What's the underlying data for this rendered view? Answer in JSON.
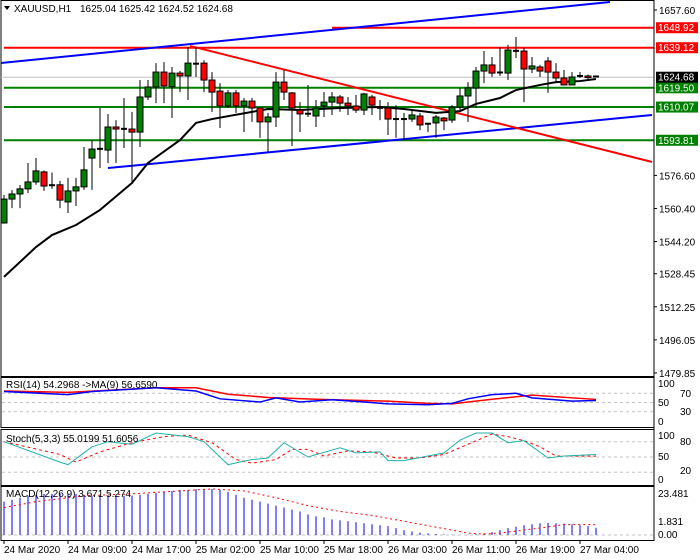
{
  "header": {
    "symbol": "XAUUSD,H1",
    "ohlc": "1625.04 1625.42 1624.52 1624.68",
    "dropdown_icon": "triangle-down-icon"
  },
  "colors": {
    "bull": "#008000",
    "bear": "#ff0000",
    "support": "#008000",
    "resistance": "#ff0000",
    "channel": "#0000ff",
    "ma": "#000000",
    "rsi": "#0000ff",
    "rsi_ma": "#ff0000",
    "stoch_main": "#20b2aa",
    "stoch_signal": "#ff0000",
    "macd_hist": "#0000ff",
    "macd_signal": "#ff0000",
    "level": "#c0c0c0"
  },
  "chart_data": [
    {
      "type": "candlestick",
      "title": "XAUUSD,H1",
      "x_tick_labels": [
        "24 Mar 2020",
        "24 Mar 09:00",
        "24 Mar 17:00",
        "25 Mar 02:00",
        "25 Mar 10:00",
        "25 Mar 18:00",
        "26 Mar 03:00",
        "26 Mar 11:00",
        "26 Mar 19:00",
        "27 Mar 04:00"
      ],
      "y_tick_labels": [
        "1657.60",
        "1576.60",
        "1560.40",
        "1544.20",
        "1528.45",
        "1512.25",
        "1496.05",
        "1479.85"
      ],
      "ylim": [
        1479.85,
        1657.6
      ],
      "candles_ohlc": [
        [
          1553.3,
          1567.0,
          1553.0,
          1565.0
        ],
        [
          1565.0,
          1569.4,
          1560.6,
          1567.5
        ],
        [
          1567.5,
          1571.9,
          1560.6,
          1570.0
        ],
        [
          1570.0,
          1582.7,
          1568.0,
          1573.4
        ],
        [
          1573.4,
          1585.1,
          1572.0,
          1578.8
        ],
        [
          1578.3,
          1579.0,
          1569.0,
          1571.4
        ],
        [
          1571.4,
          1578.0,
          1570.0,
          1571.8
        ],
        [
          1572.0,
          1573.9,
          1560.6,
          1564.5
        ],
        [
          1563.6,
          1575.4,
          1558.2,
          1569.0
        ],
        [
          1569.0,
          1575.4,
          1561.6,
          1571.0
        ],
        [
          1571.0,
          1590.5,
          1569.5,
          1579.3
        ],
        [
          1585.1,
          1594.0,
          1569.5,
          1589.5
        ],
        [
          1589.5,
          1609.6,
          1580.2,
          1589.6
        ],
        [
          1589.0,
          1606.7,
          1582.7,
          1600.3
        ],
        [
          1600.3,
          1603.7,
          1582.7,
          1599.3
        ],
        [
          1599.3,
          1614.5,
          1590.0,
          1599.4
        ],
        [
          1599.3,
          1607.7,
          1573.4,
          1597.8
        ],
        [
          1597.8,
          1623.3,
          1590.5,
          1615.0
        ],
        [
          1615.0,
          1623.3,
          1613.5,
          1619.9
        ],
        [
          1619.9,
          1631.6,
          1612.0,
          1627.2
        ],
        [
          1627.2,
          1632.1,
          1612.0,
          1620.4
        ],
        [
          1620.0,
          1629.7,
          1604.7,
          1626.7
        ],
        [
          1626.7,
          1627.7,
          1617.4,
          1625.3
        ],
        [
          1625.3,
          1639.5,
          1613.5,
          1631.6
        ],
        [
          1631.1,
          1639.5,
          1624.8,
          1631.3
        ],
        [
          1631.6,
          1633.0,
          1617.4,
          1623.3
        ],
        [
          1623.3,
          1627.2,
          1607.7,
          1617.4
        ],
        [
          1617.9,
          1621.8,
          1599.8,
          1610.6
        ],
        [
          1610.6,
          1618.4,
          1609.6,
          1617.0
        ],
        [
          1617.0,
          1618.4,
          1607.2,
          1610.6
        ],
        [
          1610.6,
          1614.5,
          1597.8,
          1613.0
        ],
        [
          1613.0,
          1614.5,
          1602.8,
          1609.6
        ],
        [
          1609.6,
          1609.6,
          1595.0,
          1602.8
        ],
        [
          1602.8,
          1607.2,
          1588.0,
          1605.2
        ],
        [
          1605.2,
          1627.2,
          1600.3,
          1622.3
        ],
        [
          1622.3,
          1628.2,
          1613.5,
          1617.4
        ],
        [
          1617.0,
          1617.4,
          1591.0,
          1609.6
        ],
        [
          1608.6,
          1612.5,
          1597.8,
          1606.7
        ],
        [
          1606.7,
          1620.9,
          1605.2,
          1606.8
        ],
        [
          1605.7,
          1613.5,
          1600.3,
          1609.6
        ],
        [
          1610.6,
          1617.4,
          1605.2,
          1612.5
        ],
        [
          1612.5,
          1617.4,
          1606.2,
          1615.0
        ],
        [
          1615.0,
          1616.0,
          1607.7,
          1612.0
        ],
        [
          1612.0,
          1615.0,
          1606.2,
          1610.6
        ],
        [
          1610.6,
          1616.0,
          1607.2,
          1608.6
        ],
        [
          1608.6,
          1617.0,
          1606.2,
          1616.5
        ],
        [
          1615.0,
          1616.0,
          1606.2,
          1611.0
        ],
        [
          1609.6,
          1613.5,
          1603.7,
          1609.7
        ],
        [
          1609.6,
          1612.5,
          1596.4,
          1604.2
        ],
        [
          1604.2,
          1611.0,
          1595.0,
          1604.0
        ],
        [
          1604.0,
          1607.2,
          1594.0,
          1604.2
        ],
        [
          1604.2,
          1608.6,
          1602.8,
          1606.2
        ],
        [
          1605.7,
          1607.2,
          1598.8,
          1601.3
        ],
        [
          1601.8,
          1602.3,
          1597.8,
          1601.9
        ],
        [
          1602.3,
          1606.2,
          1595.0,
          1605.2
        ],
        [
          1604.7,
          1605.2,
          1598.8,
          1603.3
        ],
        [
          1603.7,
          1611.0,
          1602.3,
          1610.0
        ],
        [
          1610.0,
          1619.4,
          1608.6,
          1615.5
        ],
        [
          1615.5,
          1622.3,
          1602.8,
          1619.4
        ],
        [
          1619.4,
          1629.7,
          1609.6,
          1627.7
        ],
        [
          1627.7,
          1637.5,
          1621.8,
          1630.7
        ],
        [
          1630.7,
          1634.6,
          1624.8,
          1626.7
        ],
        [
          1627.0,
          1639.5,
          1625.3,
          1626.7
        ],
        [
          1626.7,
          1640.5,
          1623.3,
          1638.0
        ],
        [
          1637.5,
          1644.4,
          1634.1,
          1637.6
        ],
        [
          1637.5,
          1639.0,
          1612.5,
          1628.7
        ],
        [
          1628.7,
          1634.6,
          1626.7,
          1630.2
        ],
        [
          1629.7,
          1630.7,
          1624.8,
          1627.7
        ],
        [
          1632.6,
          1634.6,
          1617.0,
          1627.2
        ],
        [
          1627.2,
          1631.6,
          1622.3,
          1624.3
        ],
        [
          1624.3,
          1628.2,
          1620.9,
          1620.9
        ],
        [
          1620.9,
          1627.2,
          1620.9,
          1624.8
        ],
        [
          1624.8,
          1627.2,
          1624.3,
          1625.3
        ],
        [
          1625.3,
          1626.0,
          1623.8,
          1624.5
        ],
        [
          1625.04,
          1625.42,
          1624.52,
          1624.68
        ]
      ],
      "moving_average_bar_price": [
        [
          0,
          1526.9
        ],
        [
          4,
          1541.5
        ],
        [
          6,
          1547.4
        ],
        [
          9,
          1552.3
        ],
        [
          12,
          1559.7
        ],
        [
          16,
          1572.9
        ],
        [
          18,
          1582.7
        ],
        [
          22,
          1593.9
        ],
        [
          24,
          1602.3
        ],
        [
          26,
          1604.2
        ],
        [
          31,
          1607.7
        ],
        [
          33,
          1609.1
        ],
        [
          37,
          1608.6
        ],
        [
          42,
          1609.6
        ],
        [
          47,
          1610.1
        ],
        [
          50,
          1609.1
        ],
        [
          54,
          1607.2
        ],
        [
          57,
          1608.1
        ],
        [
          59,
          1611.6
        ],
        [
          62,
          1614.5
        ],
        [
          64,
          1618.4
        ],
        [
          67,
          1620.9
        ],
        [
          69,
          1622.3
        ],
        [
          72,
          1622.8
        ],
        [
          74,
          1623.8
        ]
      ],
      "horizontal_levels": [
        {
          "price": 1648.92,
          "label": "1648.92",
          "color": "#ff0000",
          "from_bar": 41
        },
        {
          "price": 1639.12,
          "label": "1639.12",
          "color": "#ff0000",
          "from_bar": 0
        },
        {
          "price": 1619.5,
          "label": "1619.50",
          "color": "#008000",
          "from_bar": 0
        },
        {
          "price": 1610.07,
          "label": "1610.07",
          "color": "#008000",
          "from_bar": 0
        },
        {
          "price": 1593.81,
          "label": "1593.81",
          "color": "#008000",
          "from_bar": 0
        }
      ],
      "current_price": {
        "price": 1624.68,
        "label": "1624.68"
      },
      "trendlines_bar_price": [
        {
          "color": "#0000ff",
          "from": [
            -0.5,
            1631.6
          ],
          "to": [
            75.75,
            1661.5
          ]
        },
        {
          "color": "#0000ff",
          "from": [
            13,
            1580.2
          ],
          "to": [
            81,
            1606.2
          ]
        },
        {
          "color": "#ff0000",
          "from": [
            23.25,
            1640.0
          ],
          "to": [
            81,
            1583.2
          ]
        }
      ]
    },
    {
      "type": "line",
      "label": "RSI(14) 54.2968  ->MA(9) 56.6590",
      "levels": [
        70,
        50,
        30
      ],
      "y_tick_labels": [
        "100",
        "70",
        "50",
        "30",
        "0"
      ],
      "ylim": [
        0,
        100
      ],
      "rsi_bar_value": [
        [
          0,
          74
        ],
        [
          8,
          67
        ],
        [
          11,
          74
        ],
        [
          19,
          82
        ],
        [
          24,
          75
        ],
        [
          27,
          58
        ],
        [
          32,
          51
        ],
        [
          34,
          60
        ],
        [
          37,
          51
        ],
        [
          41,
          56
        ],
        [
          45,
          51
        ],
        [
          48,
          47
        ],
        [
          53,
          45
        ],
        [
          56,
          48
        ],
        [
          58,
          58
        ],
        [
          61,
          67
        ],
        [
          64,
          70
        ],
        [
          66,
          60
        ],
        [
          71,
          53
        ],
        [
          74,
          54.2968
        ]
      ],
      "ma_bar_value": [
        [
          0,
          75
        ],
        [
          8,
          72
        ],
        [
          19,
          82
        ],
        [
          24,
          82
        ],
        [
          28,
          68
        ],
        [
          33,
          61
        ],
        [
          39,
          57
        ],
        [
          48,
          53
        ],
        [
          53,
          48
        ],
        [
          56,
          47
        ],
        [
          61,
          57
        ],
        [
          66,
          66
        ],
        [
          74,
          56.659
        ]
      ]
    },
    {
      "type": "line",
      "label": "Stoch(5,3,3) 55.0199 51.6056",
      "levels": [
        80,
        50,
        20
      ],
      "y_tick_labels": [
        "100",
        "80",
        "50",
        "20",
        "0"
      ],
      "ylim": [
        0,
        100
      ],
      "main_bar_value": [
        [
          0,
          80
        ],
        [
          7,
          40
        ],
        [
          8,
          35
        ],
        [
          11,
          70
        ],
        [
          13,
          80
        ],
        [
          16,
          75
        ],
        [
          19,
          97
        ],
        [
          23,
          90
        ],
        [
          25,
          80
        ],
        [
          28,
          35
        ],
        [
          31,
          45
        ],
        [
          33,
          48
        ],
        [
          35,
          78
        ],
        [
          38,
          50
        ],
        [
          42,
          68
        ],
        [
          44,
          58
        ],
        [
          47,
          60
        ],
        [
          48,
          43
        ],
        [
          50,
          43
        ],
        [
          53,
          52
        ],
        [
          55,
          58
        ],
        [
          57,
          83
        ],
        [
          59,
          97
        ],
        [
          61,
          97
        ],
        [
          63,
          78
        ],
        [
          65,
          82
        ],
        [
          68,
          48
        ],
        [
          70,
          52
        ],
        [
          74,
          55.0199
        ]
      ],
      "signal_bar_value": [
        [
          0,
          80
        ],
        [
          7,
          55
        ],
        [
          9,
          40
        ],
        [
          12,
          60
        ],
        [
          16,
          78
        ],
        [
          20,
          90
        ],
        [
          23,
          93
        ],
        [
          26,
          78
        ],
        [
          29,
          45
        ],
        [
          31,
          38
        ],
        [
          34,
          45
        ],
        [
          36,
          65
        ],
        [
          38,
          65
        ],
        [
          40,
          52
        ],
        [
          43,
          62
        ],
        [
          46,
          60
        ],
        [
          49,
          48
        ],
        [
          52,
          48
        ],
        [
          55,
          55
        ],
        [
          58,
          75
        ],
        [
          61,
          95
        ],
        [
          63,
          90
        ],
        [
          65,
          82
        ],
        [
          67,
          70
        ],
        [
          69,
          52
        ],
        [
          74,
          51.6056
        ]
      ]
    },
    {
      "type": "bar",
      "label": "MACD(12,26,9) 3.671 5.274",
      "y_tick_labels": [
        "23.481",
        "1.831",
        "0.00"
      ],
      "ylim": [
        0,
        23.481
      ],
      "histogram": [
        17,
        18,
        19,
        20,
        20.5,
        21,
        21,
        21,
        21,
        21,
        20.5,
        20,
        20,
        20,
        20,
        20,
        20,
        20.5,
        21,
        21.5,
        22,
        22.5,
        23,
        23,
        23.5,
        23.5,
        23.5,
        23,
        22,
        20.5,
        19,
        18,
        17,
        16,
        15,
        14,
        13,
        12,
        10.5,
        9.5,
        9,
        8,
        7.5,
        7,
        6.5,
        6,
        5.5,
        5,
        4.5,
        3.5,
        2.5,
        1.8,
        1.2,
        0.8,
        0.5,
        0.3,
        0.1,
        0,
        0.2,
        0.4,
        0.8,
        1.5,
        2.5,
        3.5,
        4.2,
        5,
        5.5,
        6,
        6.2,
        6,
        5.8,
        5.5,
        5,
        4.5,
        3.671
      ],
      "signal_bar_value": [
        [
          0,
          14
        ],
        [
          4,
          17
        ],
        [
          10,
          20
        ],
        [
          16,
          21
        ],
        [
          20,
          22
        ],
        [
          26,
          23.5
        ],
        [
          30,
          22.5
        ],
        [
          34,
          19
        ],
        [
          38,
          15
        ],
        [
          42,
          12
        ],
        [
          46,
          10
        ],
        [
          50,
          7
        ],
        [
          54,
          4
        ],
        [
          58,
          1
        ],
        [
          60,
          0.5
        ],
        [
          62,
          1
        ],
        [
          66,
          3
        ],
        [
          70,
          5.3
        ],
        [
          74,
          5.274
        ]
      ]
    }
  ]
}
